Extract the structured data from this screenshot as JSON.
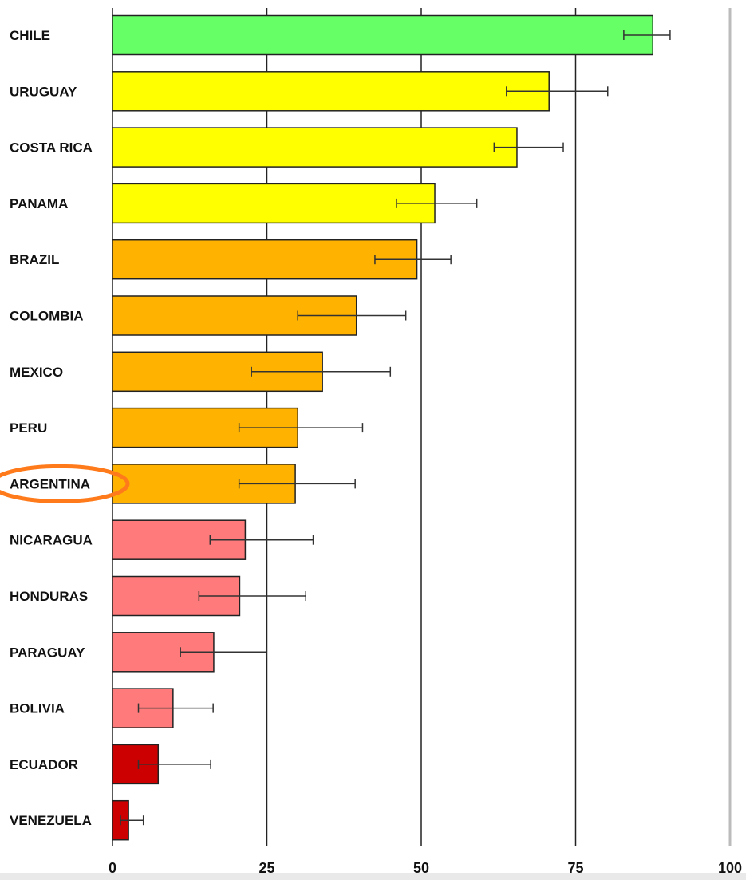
{
  "chart_data": {
    "type": "bar",
    "orientation": "horizontal",
    "title": "",
    "xlabel": "",
    "ylabel": "",
    "xlim": [
      0,
      100
    ],
    "xticks": [
      0,
      25,
      50,
      75,
      100
    ],
    "xtick_labels": [
      "0",
      "25",
      "50",
      "75",
      "100"
    ],
    "grid": "vertical",
    "categories": [
      "CHILE",
      "URUGUAY",
      "COSTA RICA",
      "PANAMA",
      "BRAZIL",
      "COLOMBIA",
      "MEXICO",
      "PERU",
      "ARGENTINA",
      "NICARAGUA",
      "HONDURAS",
      "PARAGUAY",
      "BOLIVIA",
      "ECUADOR",
      "VENEZUELA"
    ],
    "values": [
      87.5,
      70.7,
      65.5,
      52.2,
      49.3,
      39.5,
      34.0,
      30.0,
      29.6,
      21.5,
      20.6,
      16.4,
      9.8,
      7.4,
      2.6
    ],
    "error_low": [
      82.8,
      63.8,
      61.8,
      46.0,
      42.5,
      30.0,
      22.5,
      20.5,
      20.5,
      15.8,
      14.0,
      11.0,
      4.2,
      4.2,
      1.3
    ],
    "error_high": [
      90.3,
      80.2,
      73.0,
      59.0,
      54.8,
      47.5,
      45.0,
      40.5,
      39.3,
      32.5,
      31.3,
      24.9,
      16.3,
      15.9,
      5.0
    ],
    "bar_colors": [
      "#66ff66",
      "#ffff00",
      "#ffff00",
      "#ffff00",
      "#ffb300",
      "#ffb300",
      "#ffb300",
      "#ffb300",
      "#ffb300",
      "#ff7b7b",
      "#ff7b7b",
      "#ff7b7b",
      "#ff7b7b",
      "#cc0000",
      "#cc0000"
    ],
    "highlighted_category": "ARGENTINA",
    "highlight_color": "#ff7a1a",
    "grid_color": "#222222",
    "bar_stroke_color": "#222222"
  }
}
